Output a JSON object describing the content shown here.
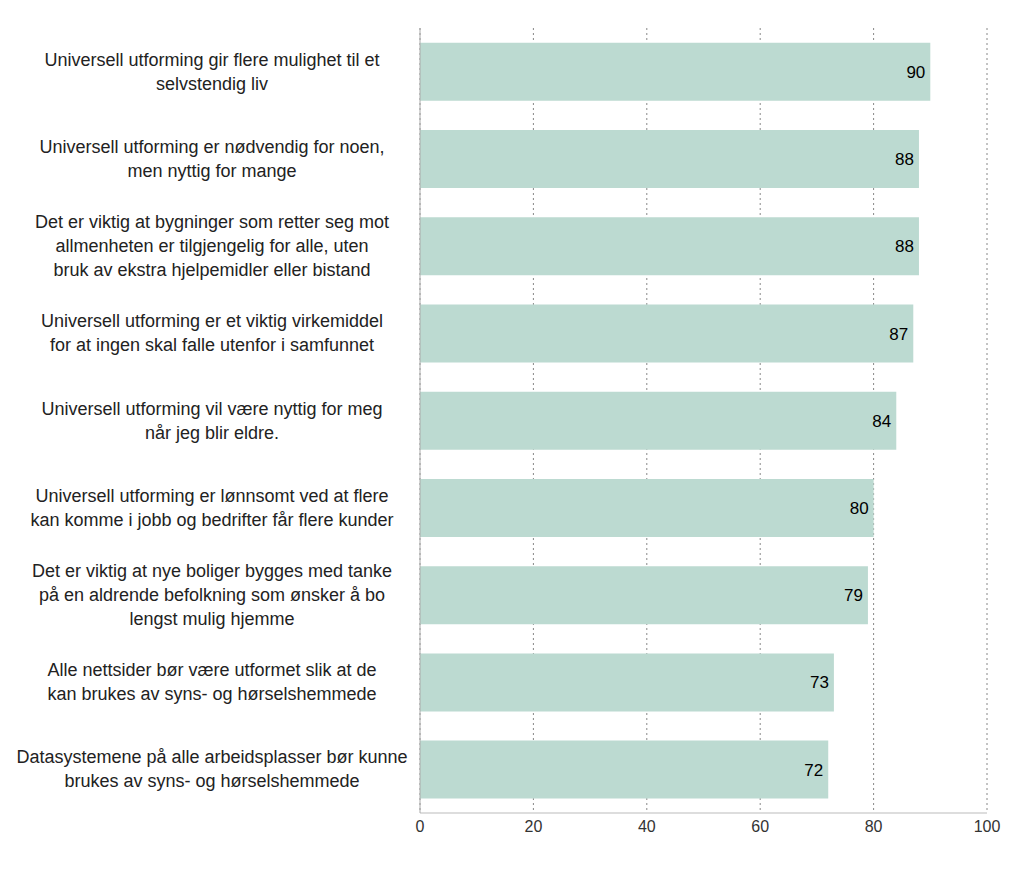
{
  "chart_data": {
    "type": "bar",
    "orientation": "horizontal",
    "categories": [
      "Universell utforming gir flere mulighet til et selvstendig liv",
      "Universell utforming er nødvendig for noen, men nyttig for mange",
      "Det er viktig at bygninger som retter seg mot allmenheten er tilgjengelig for alle, uten bruk av ekstra hjelpemidler eller bistand",
      "Universell utforming er et viktig virkemiddel for at ingen skal falle utenfor i samfunnet",
      "Universell utforming vil være nyttig for meg når jeg blir eldre.",
      "Universell utforming er lønnsomt ved at flere kan komme i jobb og bedrifter får flere kunder",
      "Det er viktig at nye boliger bygges med tanke på en aldrende befolkning som ønsker å bo lengst mulig hjemme",
      "Alle nettsider bør være utformet slik at de kan brukes av syns- og hørselshemmede",
      "Datasystemene på alle arbeidsplasser bør kunne brukes av syns- og hørselshemmede"
    ],
    "values": [
      90,
      88,
      88,
      87,
      84,
      80,
      79,
      73,
      72
    ],
    "color": "#bcdad1",
    "xlim": [
      0,
      100
    ],
    "xticks": [
      0,
      20,
      40,
      60,
      80,
      100
    ],
    "grid": true,
    "data_labels": true
  }
}
